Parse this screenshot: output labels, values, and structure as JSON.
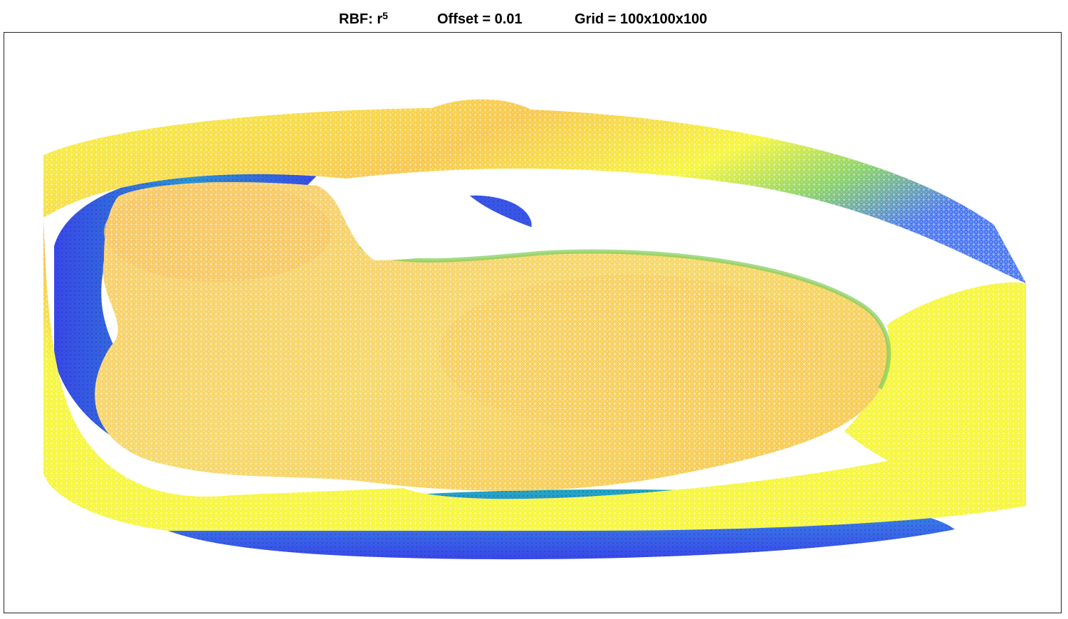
{
  "title": {
    "rbf_label": "RBF: r",
    "rbf_exponent": "5",
    "offset": "Offset = 0.01",
    "grid": "Grid = 100x100x100"
  },
  "colormap": {
    "blue": "#3b4cf0",
    "cyan": "#22b5c8",
    "green": "#7ccd5a",
    "yellow": "#f5f529",
    "orange": "#f7b73a"
  }
}
